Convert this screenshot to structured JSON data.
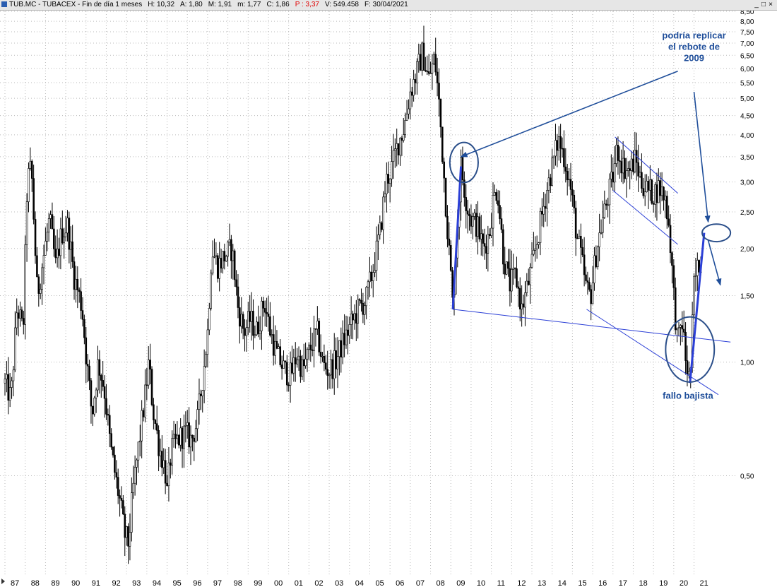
{
  "window": {
    "symbol": "TUB.MC - TUBACEX - Fin de día 1 meses",
    "high": "H: 10,32",
    "open": "A: 1,80",
    "max": "M: 1,91",
    "min": "m: 1,77",
    "close": "C: 1,86",
    "perf": "P : 3,37",
    "volume": "V: 549.458",
    "date": "F: 30/04/2021",
    "controls": [
      "_",
      "□",
      "×"
    ]
  },
  "chart_data": {
    "type": "candlestick",
    "title": "TUB.MC - TUBACEX - Fin de día 1 meses",
    "y_scale": "log",
    "ylim": [
      0.3,
      8.5
    ],
    "y_ticks": [
      {
        "v": 8.5,
        "label": "8,50"
      },
      {
        "v": 8.0,
        "label": "8,00"
      },
      {
        "v": 7.5,
        "label": "7,50"
      },
      {
        "v": 7.0,
        "label": "7,00"
      },
      {
        "v": 6.5,
        "label": "6,50"
      },
      {
        "v": 6.0,
        "label": "6,00"
      },
      {
        "v": 5.5,
        "label": "5,50"
      },
      {
        "v": 5.0,
        "label": "5,00"
      },
      {
        "v": 4.5,
        "label": "4,50"
      },
      {
        "v": 4.0,
        "label": "4,00"
      },
      {
        "v": 3.5,
        "label": "3,50"
      },
      {
        "v": 3.0,
        "label": "3,00"
      },
      {
        "v": 2.5,
        "label": "2,50"
      },
      {
        "v": 2.0,
        "label": "2,00"
      },
      {
        "v": 1.5,
        "label": "1,50"
      },
      {
        "v": 1.0,
        "label": "1,00"
      },
      {
        "v": 0.5,
        "label": "0,50"
      }
    ],
    "x_start": 1987.0,
    "x_end": 2021.33,
    "x_ticks": [
      {
        "year": 1987,
        "label": "87"
      },
      {
        "year": 1988,
        "label": "88"
      },
      {
        "year": 1989,
        "label": "89"
      },
      {
        "year": 1990,
        "label": "90"
      },
      {
        "year": 1991,
        "label": "91"
      },
      {
        "year": 1992,
        "label": "92"
      },
      {
        "year": 1993,
        "label": "93"
      },
      {
        "year": 1994,
        "label": "94"
      },
      {
        "year": 1995,
        "label": "95"
      },
      {
        "year": 1996,
        "label": "96"
      },
      {
        "year": 1997,
        "label": "97"
      },
      {
        "year": 1998,
        "label": "98"
      },
      {
        "year": 1999,
        "label": "99"
      },
      {
        "year": 2000,
        "label": "00"
      },
      {
        "year": 2001,
        "label": "01"
      },
      {
        "year": 2002,
        "label": "02"
      },
      {
        "year": 2003,
        "label": "03"
      },
      {
        "year": 2004,
        "label": "04"
      },
      {
        "year": 2005,
        "label": "05"
      },
      {
        "year": 2006,
        "label": "06"
      },
      {
        "year": 2007,
        "label": "07"
      },
      {
        "year": 2008,
        "label": "08"
      },
      {
        "year": 2009,
        "label": "09"
      },
      {
        "year": 2010,
        "label": "10"
      },
      {
        "year": 2011,
        "label": "11"
      },
      {
        "year": 2012,
        "label": "12"
      },
      {
        "year": 2013,
        "label": "13"
      },
      {
        "year": 2014,
        "label": "14"
      },
      {
        "year": 2015,
        "label": "15"
      },
      {
        "year": 2016,
        "label": "16"
      },
      {
        "year": 2017,
        "label": "17"
      },
      {
        "year": 2018,
        "label": "18"
      },
      {
        "year": 2019,
        "label": "19"
      },
      {
        "year": 2020,
        "label": "20"
      },
      {
        "year": 2021,
        "label": "21"
      }
    ],
    "price_anchors": [
      [
        1987.0,
        0.88
      ],
      [
        1987.3,
        0.8
      ],
      [
        1987.6,
        1.4
      ],
      [
        1987.9,
        1.2
      ],
      [
        1988.1,
        3.0
      ],
      [
        1988.3,
        3.3
      ],
      [
        1988.6,
        1.5
      ],
      [
        1988.9,
        1.9
      ],
      [
        1989.2,
        2.4
      ],
      [
        1989.5,
        1.8
      ],
      [
        1989.8,
        2.2
      ],
      [
        1990.1,
        2.3
      ],
      [
        1990.4,
        1.7
      ],
      [
        1990.8,
        1.4
      ],
      [
        1991.0,
        1.05
      ],
      [
        1991.3,
        0.72
      ],
      [
        1991.6,
        1.0
      ],
      [
        1991.9,
        0.85
      ],
      [
        1992.2,
        0.6
      ],
      [
        1992.5,
        0.48
      ],
      [
        1992.7,
        0.42
      ],
      [
        1992.9,
        0.35
      ],
      [
        1993.1,
        0.33
      ],
      [
        1993.3,
        0.45
      ],
      [
        1993.6,
        0.6
      ],
      [
        1993.9,
        0.8
      ],
      [
        1994.1,
        1.0
      ],
      [
        1994.3,
        0.75
      ],
      [
        1994.6,
        0.6
      ],
      [
        1994.9,
        0.52
      ],
      [
        1995.0,
        0.45
      ],
      [
        1995.2,
        0.58
      ],
      [
        1995.5,
        0.62
      ],
      [
        1995.9,
        0.65
      ],
      [
        1996.2,
        0.62
      ],
      [
        1996.5,
        0.7
      ],
      [
        1996.8,
        0.95
      ],
      [
        1997.0,
        1.2
      ],
      [
        1997.2,
        2.0
      ],
      [
        1997.5,
        1.8
      ],
      [
        1997.8,
        1.9
      ],
      [
        1998.2,
        2.0
      ],
      [
        1998.5,
        1.4
      ],
      [
        1998.8,
        1.2
      ],
      [
        1999.1,
        1.3
      ],
      [
        1999.4,
        1.2
      ],
      [
        1999.8,
        1.45
      ],
      [
        2000.1,
        1.2
      ],
      [
        2000.4,
        1.05
      ],
      [
        2000.8,
        0.95
      ],
      [
        2001.1,
        0.92
      ],
      [
        2001.4,
        1.05
      ],
      [
        2001.7,
        0.95
      ],
      [
        2002.1,
        1.1
      ],
      [
        2002.4,
        1.2
      ],
      [
        2002.7,
        0.98
      ],
      [
        2003.0,
        0.95
      ],
      [
        2003.3,
        1.0
      ],
      [
        2003.6,
        1.1
      ],
      [
        2003.9,
        1.2
      ],
      [
        2004.2,
        1.3
      ],
      [
        2004.5,
        1.4
      ],
      [
        2004.8,
        1.45
      ],
      [
        2005.2,
        1.8
      ],
      [
        2005.5,
        2.2
      ],
      [
        2005.8,
        3.0
      ],
      [
        2006.1,
        3.3
      ],
      [
        2006.4,
        3.8
      ],
      [
        2006.7,
        4.2
      ],
      [
        2007.0,
        5.2
      ],
      [
        2007.3,
        5.8
      ],
      [
        2007.6,
        6.6
      ],
      [
        2007.9,
        5.6
      ],
      [
        2008.2,
        6.4
      ],
      [
        2008.4,
        5.0
      ],
      [
        2008.6,
        3.5
      ],
      [
        2008.8,
        2.4
      ],
      [
        2009.0,
        1.7
      ],
      [
        2009.1,
        1.38
      ],
      [
        2009.3,
        2.2
      ],
      [
        2009.5,
        3.3
      ],
      [
        2009.8,
        2.6
      ],
      [
        2010.0,
        2.4
      ],
      [
        2010.3,
        2.3
      ],
      [
        2010.6,
        2.0
      ],
      [
        2010.9,
        2.2
      ],
      [
        2011.1,
        2.7
      ],
      [
        2011.3,
        2.9
      ],
      [
        2011.6,
        1.9
      ],
      [
        2011.9,
        1.6
      ],
      [
        2012.2,
        1.7
      ],
      [
        2012.5,
        1.38
      ],
      [
        2012.8,
        1.6
      ],
      [
        2013.1,
        1.9
      ],
      [
        2013.4,
        2.3
      ],
      [
        2013.7,
        2.8
      ],
      [
        2014.0,
        3.3
      ],
      [
        2014.3,
        3.9
      ],
      [
        2014.6,
        3.5
      ],
      [
        2014.9,
        2.9
      ],
      [
        2015.2,
        2.2
      ],
      [
        2015.5,
        1.8
      ],
      [
        2015.7,
        1.55
      ],
      [
        2015.9,
        1.5
      ],
      [
        2016.2,
        2.0
      ],
      [
        2016.5,
        2.4
      ],
      [
        2016.8,
        2.8
      ],
      [
        2017.0,
        3.1
      ],
      [
        2017.2,
        3.7
      ],
      [
        2017.5,
        3.3
      ],
      [
        2017.8,
        3.2
      ],
      [
        2018.1,
        3.45
      ],
      [
        2018.4,
        3.0
      ],
      [
        2018.7,
        2.85
      ],
      [
        2019.0,
        2.8
      ],
      [
        2019.3,
        2.9
      ],
      [
        2019.6,
        2.7
      ],
      [
        2019.8,
        2.2
      ],
      [
        2020.0,
        1.5
      ],
      [
        2020.2,
        1.1
      ],
      [
        2020.4,
        1.3
      ],
      [
        2020.6,
        1.0
      ],
      [
        2020.8,
        0.88
      ],
      [
        2021.0,
        1.6
      ],
      [
        2021.2,
        1.8
      ],
      [
        2021.33,
        1.86
      ]
    ],
    "trendlines": [
      {
        "name": "support-line-lower",
        "points": [
          [
            2009.1,
            1.38
          ],
          [
            2022.8,
            1.13
          ]
        ],
        "color": "#2b3fd6",
        "width": 1
      },
      {
        "name": "support-line-steep",
        "points": [
          [
            2015.7,
            1.38
          ],
          [
            2022.2,
            0.82
          ]
        ],
        "color": "#2b3fd6",
        "width": 1
      },
      {
        "name": "channel-upper",
        "points": [
          [
            2017.1,
            3.95
          ],
          [
            2020.2,
            2.8
          ]
        ],
        "color": "#2b3fd6",
        "width": 1
      },
      {
        "name": "channel-lower",
        "points": [
          [
            2017.0,
            2.85
          ],
          [
            2020.2,
            2.05
          ]
        ],
        "color": "#2b3fd6",
        "width": 1
      },
      {
        "name": "rebound-2009-line",
        "points": [
          [
            2009.1,
            1.38
          ],
          [
            2009.5,
            3.3
          ]
        ],
        "color": "#2b3fd6",
        "width": 3
      },
      {
        "name": "rebound-2020-line",
        "points": [
          [
            2020.8,
            0.88
          ],
          [
            2021.5,
            2.2
          ]
        ],
        "color": "#2b3fd6",
        "width": 3
      }
    ],
    "arrows": [
      {
        "name": "arrow-to-2009-peak",
        "points": [
          [
            2020.2,
            5.9
          ],
          [
            2009.5,
            3.5
          ]
        ],
        "color": "#1f4e9a"
      },
      {
        "name": "arrow-to-projection",
        "points": [
          [
            2021.0,
            5.2
          ],
          [
            2021.7,
            2.35
          ]
        ],
        "color": "#1f4e9a"
      },
      {
        "name": "arrow-projected-decline",
        "points": [
          [
            2021.7,
            2.1
          ],
          [
            2022.3,
            1.6
          ]
        ],
        "color": "#1f4e9a"
      }
    ],
    "ellipses": [
      {
        "name": "ellipse-2009-peak",
        "center": [
          2009.65,
          3.38
        ],
        "rx_years": 0.7,
        "ry_factor": 1.13,
        "color": "#2b4f8a"
      },
      {
        "name": "ellipse-2021-target",
        "center": [
          2022.1,
          2.2
        ],
        "rx_years": 0.7,
        "ry_factor": 1.055,
        "color": "#2b4f8a"
      },
      {
        "name": "ellipse-failed-breakdown",
        "center": [
          2020.8,
          1.08
        ],
        "rx_years": 1.2,
        "ry_factor": 1.22,
        "color": "#2b4f8a"
      }
    ],
    "annotations": [
      {
        "name": "annotation-rebound-2009",
        "lines": [
          "podría replicar",
          "el rebote de",
          "2009"
        ],
        "anchor": [
          2021.0,
          7.2
        ]
      },
      {
        "name": "annotation-bearish-failure",
        "lines": [
          "fallo bajista"
        ],
        "anchor": [
          2020.7,
          0.8
        ]
      }
    ]
  }
}
